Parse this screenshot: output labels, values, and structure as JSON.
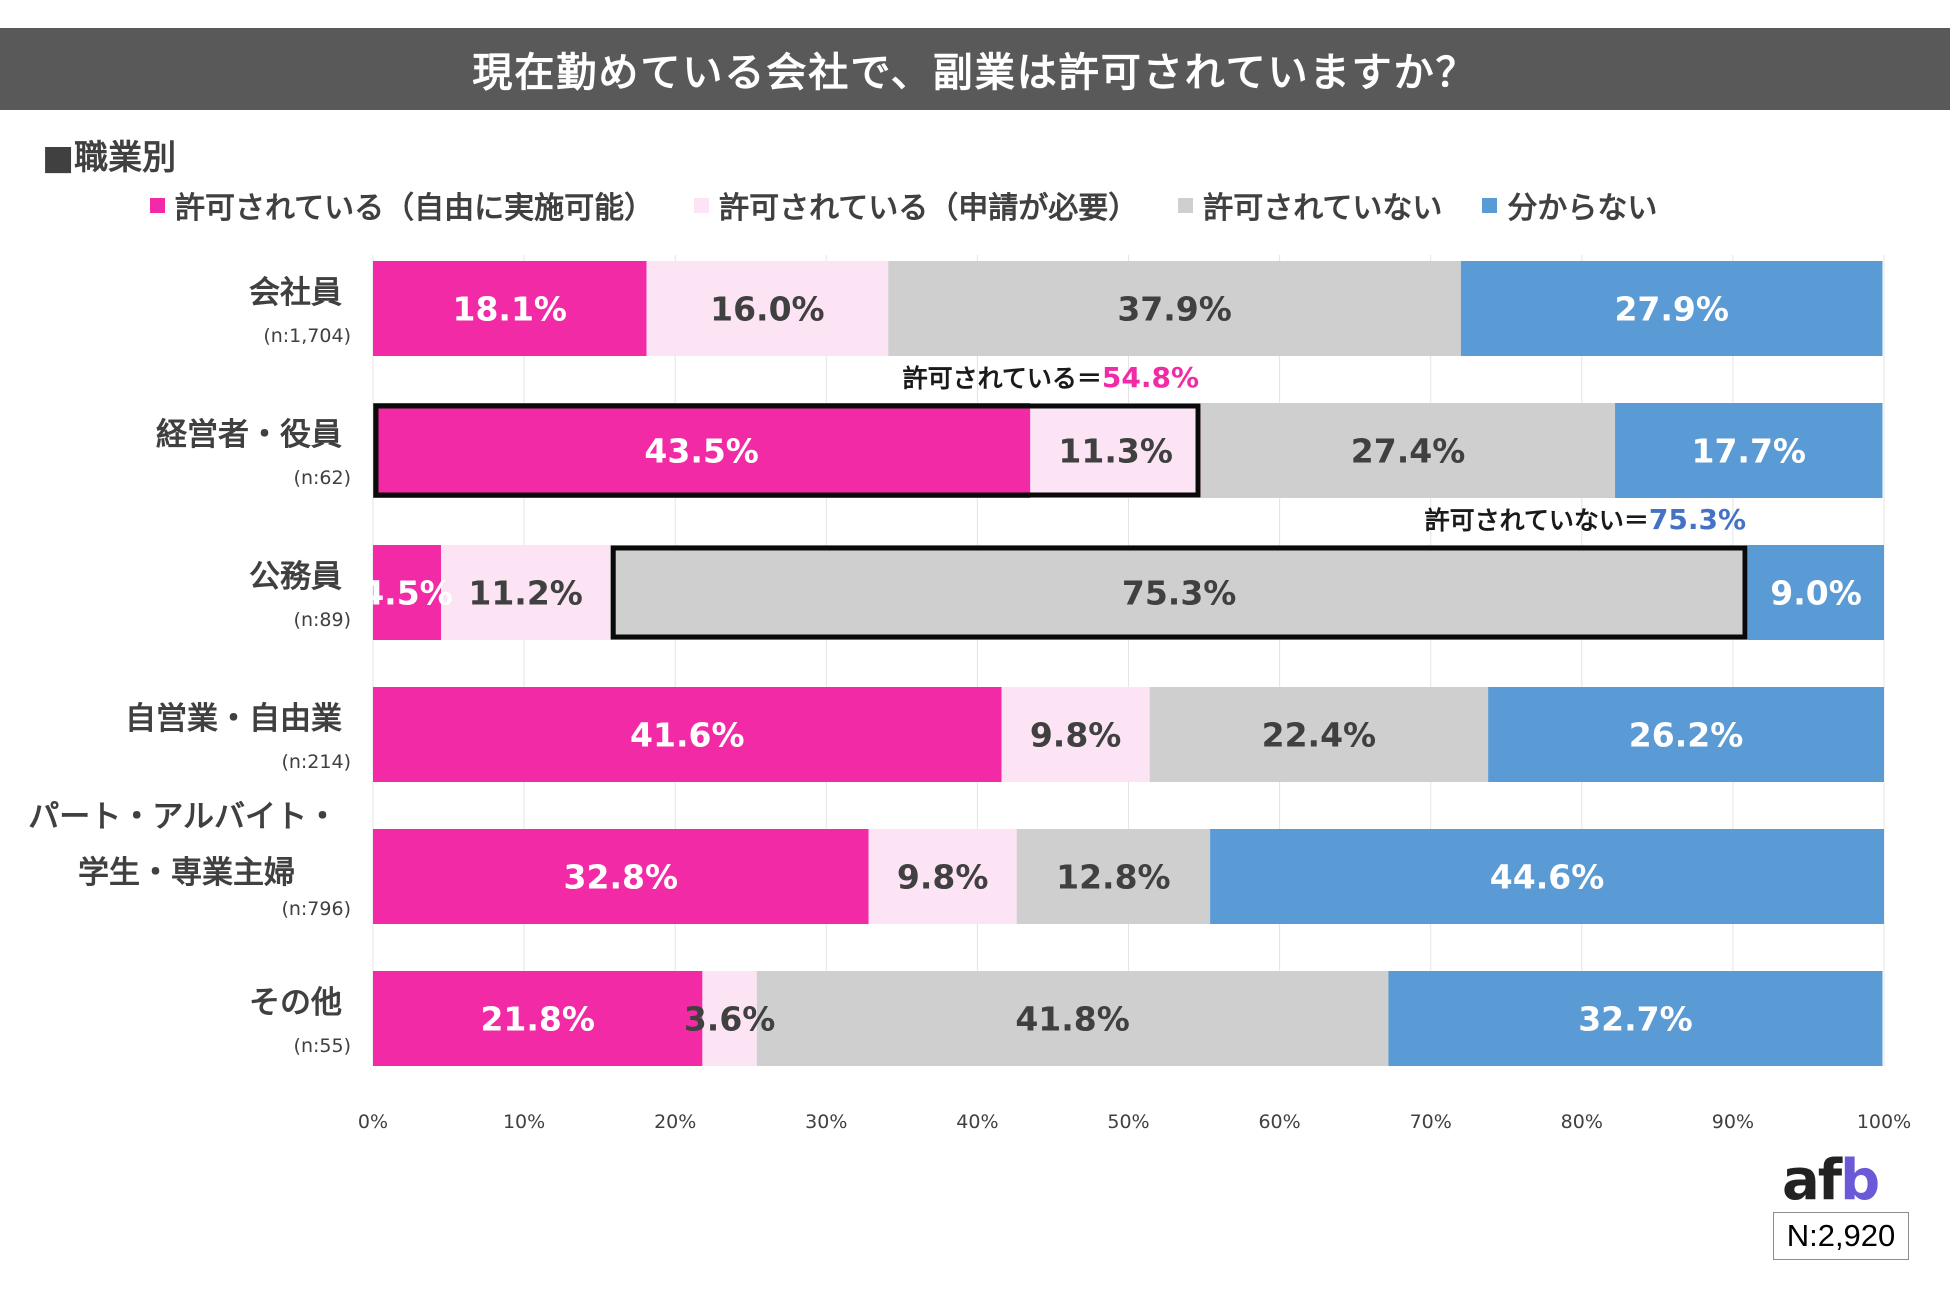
{
  "title": "現在勤めている会社で、副業は許可されていますか？",
  "subtitle": "■職業別",
  "legend": [
    {
      "label": "許可されている（自由に実施可能）",
      "color": "#f22aa6"
    },
    {
      "label": "許可されている（申請が必要）",
      "color": "#fce4f4"
    },
    {
      "label": "許可されていない",
      "color": "#d0cfcf"
    },
    {
      "label": "分からない",
      "color": "#5b9bd5"
    }
  ],
  "chart_data": {
    "type": "bar",
    "orientation": "horizontal",
    "stacked": true,
    "title": "現在勤めている会社で、副業は許可されていますか？",
    "categories": [
      {
        "label": [
          "会社員"
        ],
        "n": "(n:1,704)"
      },
      {
        "label": [
          "経営者・役員"
        ],
        "n": "(n:62)"
      },
      {
        "label": [
          "公務員"
        ],
        "n": "(n:89)"
      },
      {
        "label": [
          "自営業・自由業"
        ],
        "n": "(n:214)"
      },
      {
        "label": [
          "パート・アルバイト・",
          "学生・専業主婦"
        ],
        "n": "(n:796)"
      },
      {
        "label": [
          "その他"
        ],
        "n": "(n:55)"
      }
    ],
    "series": [
      {
        "name": "許可されている（自由に実施可能）",
        "color": "#f22aa6",
        "text_color": "#ffffff",
        "values": [
          18.1,
          43.5,
          4.5,
          41.6,
          32.8,
          21.8
        ]
      },
      {
        "name": "許可されている（申請が必要）",
        "color": "#fce4f4",
        "text_color": "#404040",
        "values": [
          16.0,
          11.3,
          11.2,
          9.8,
          9.8,
          3.6
        ]
      },
      {
        "name": "許可されていない",
        "color": "#d0cfcf",
        "text_color": "#404040",
        "values": [
          37.9,
          27.4,
          75.3,
          22.4,
          12.8,
          41.8
        ]
      },
      {
        "name": "分からない",
        "color": "#5b9bd5",
        "text_color": "#ffffff",
        "values": [
          27.9,
          17.7,
          9.0,
          26.2,
          44.6,
          32.7
        ]
      }
    ],
    "xlim": [
      0,
      100
    ],
    "xticks": [
      "0%",
      "10%",
      "20%",
      "30%",
      "40%",
      "50%",
      "60%",
      "70%",
      "80%",
      "90%",
      "100%"
    ],
    "annotations": [
      {
        "row": 1,
        "from_series": 0,
        "to_series": 1,
        "text": "許可されている＝",
        "value": "54.8%",
        "value_color": "#f22aa6"
      },
      {
        "row": 2,
        "from_series": 2,
        "to_series": 2,
        "text": "許可されていない＝",
        "value": "75.3%",
        "value_color": "#4472c4"
      }
    ]
  },
  "logo": {
    "text_a": "af",
    "text_b": "b"
  },
  "sample_size": "N:2,920"
}
